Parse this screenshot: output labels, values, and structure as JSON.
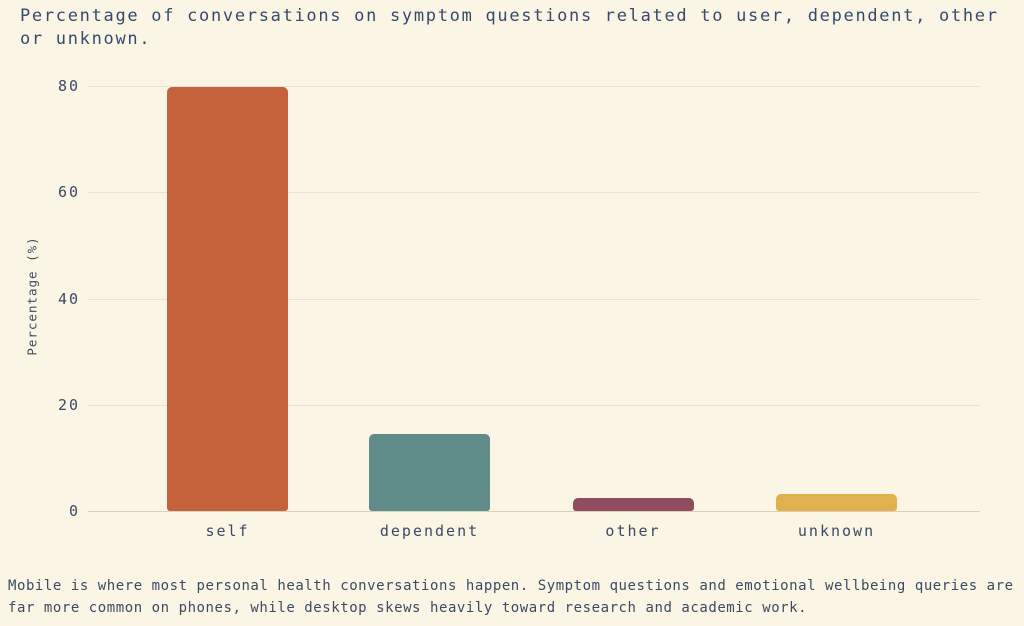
{
  "title": "Percentage of conversations on symptom questions related to user, dependent, other or unknown.",
  "caption": "Mobile is where most personal health conversations happen. Symptom questions and emotional wellbeing queries are far more common on phones, while desktop skews heavily toward research and academic work.",
  "chart_data": {
    "type": "bar",
    "title": "Percentage of conversations on symptom questions related to user, dependent, other or unknown.",
    "categories": [
      "self",
      "dependent",
      "other",
      "unknown"
    ],
    "values": [
      79.8,
      14.4,
      2.5,
      3.2
    ],
    "xlabel": "",
    "ylabel": "Percentage (%)",
    "ylim": [
      0,
      84
    ],
    "yticks": [
      0,
      20,
      40,
      60,
      80
    ],
    "grid": true,
    "legend": "none",
    "bar_colors": [
      "#c5623c",
      "#5f8c88",
      "#8f4d5f",
      "#e2b14f"
    ]
  },
  "colors": {
    "background": "#fbf5e5",
    "title_text": "#344b6e",
    "tick_text": "#3b4b63",
    "gridline": "#eae2cf",
    "axis_baseline": "#d8d1bd"
  }
}
